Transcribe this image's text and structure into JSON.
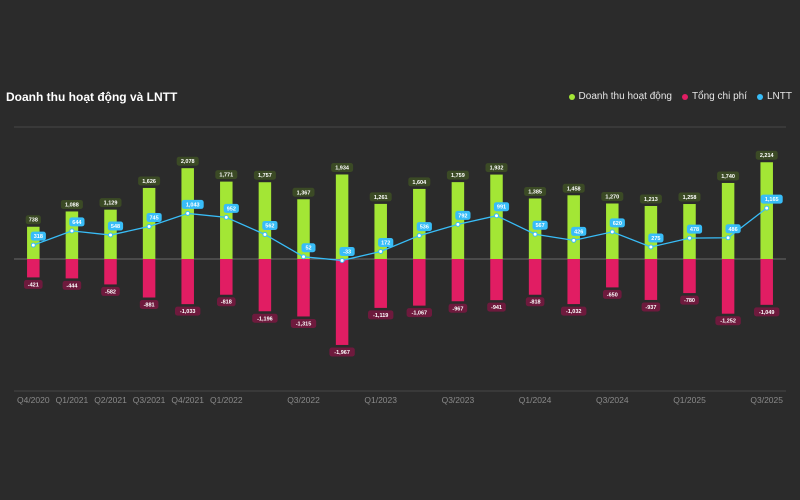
{
  "chart_data": {
    "type": "bar+line",
    "title": "Doanh thu hoạt động và LNTT",
    "legend": [
      {
        "name": "Doanh thu hoạt động",
        "color": "#a3e635"
      },
      {
        "name": "Tổng chi phí",
        "color": "#e11d63"
      },
      {
        "name": "LNTT",
        "color": "#38bdf8"
      }
    ],
    "categories": [
      "Q4/2020",
      "Q1/2021",
      "Q2/2021",
      "Q3/2021",
      "Q4/2021",
      "Q1/2022",
      "Q2/2022",
      "Q3/2022",
      "Q4/2022",
      "Q1/2023",
      "Q2/2023",
      "Q3/2023",
      "Q4/2023",
      "Q1/2024",
      "Q2/2024",
      "Q3/2024",
      "Q4/2024",
      "Q1/2025",
      "Q2/2025",
      "Q3/2025"
    ],
    "tick_labels": [
      "Q4/2020",
      "Q1/2021",
      "Q2/2021",
      "Q3/2021",
      "Q4/2021",
      "Q1/2022",
      "",
      "Q3/2022",
      "",
      "Q1/2023",
      "",
      "Q3/2023",
      "",
      "Q1/2024",
      "",
      "Q3/2024",
      "",
      "Q1/2025",
      "",
      "Q3/2025"
    ],
    "series": [
      {
        "name": "Doanh thu hoạt động",
        "type": "bar",
        "values": [
          738,
          1088,
          1129,
          1626,
          2078,
          1771,
          1757,
          1367,
          1934,
          1261,
          1604,
          1759,
          1932,
          1385,
          1458,
          1270,
          1213,
          1258,
          1740,
          2214
        ],
        "labels": [
          "738",
          "1,088",
          "1,129",
          "1,626",
          "2,078",
          "1,771",
          "1,757",
          "1,367",
          "1,934",
          "1,261",
          "1,604",
          "1,759",
          "1,932",
          "1,385",
          "1,458",
          "1,270",
          "1,213",
          "1,258",
          "1,740",
          "2,214"
        ]
      },
      {
        "name": "Tổng chi phí",
        "type": "bar",
        "values": [
          -421,
          -444,
          -582,
          -881,
          -1033,
          -818,
          -1196,
          -1315,
          -1967,
          -1119,
          -1067,
          -967,
          -941,
          -818,
          -1032,
          -650,
          -937,
          -780,
          -1252,
          -1049
        ],
        "labels": [
          "-421",
          "-444",
          "-582",
          "-881",
          "-1,033",
          "-818",
          "-1,196",
          "-1,315",
          "-1,967",
          "-1,119",
          "-1,067",
          "-967",
          "-941",
          "-818",
          "-1,032",
          "-650",
          "-937",
          "-780",
          "-1,252",
          "-1,049"
        ]
      },
      {
        "name": "LNTT",
        "type": "line",
        "values": [
          318,
          644,
          548,
          745,
          1043,
          952,
          562,
          52,
          -33,
          172,
          536,
          792,
          991,
          567,
          426,
          620,
          275,
          478,
          486,
          1165
        ],
        "labels": [
          "318",
          "644",
          "548",
          "745",
          "1,043",
          "952",
          "562",
          "52",
          "-33",
          "172",
          "536",
          "792",
          "991",
          "567",
          "426",
          "620",
          "275",
          "478",
          "486",
          "1,165"
        ]
      }
    ],
    "ylim": [
      -2400,
      2400
    ],
    "grid": true
  }
}
